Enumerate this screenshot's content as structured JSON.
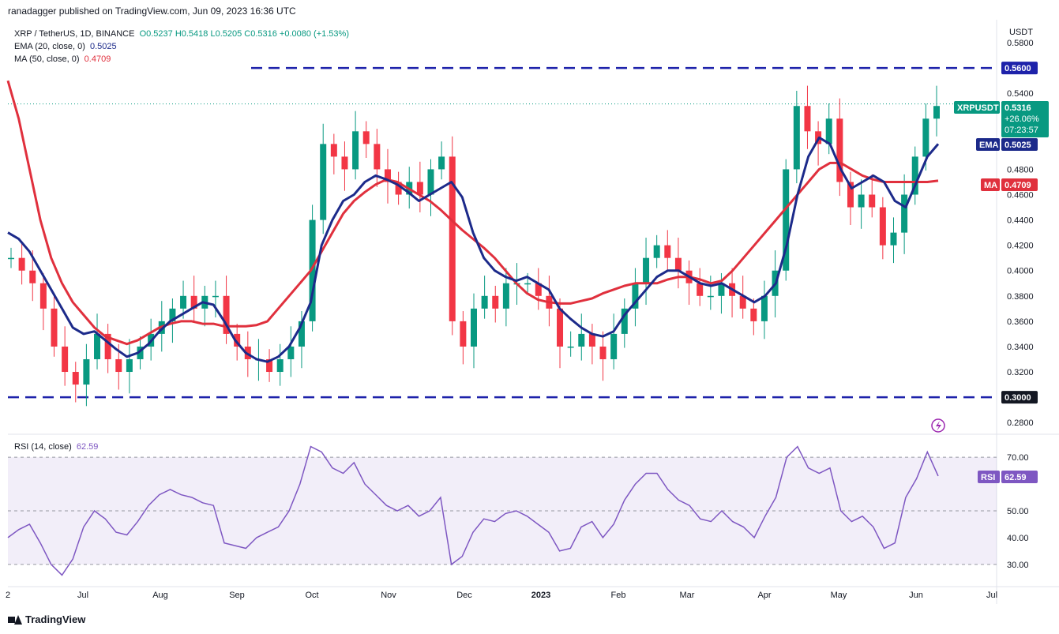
{
  "header": {
    "published": "ranadagger published on TradingView.com, Jun 09, 2023 16:36 UTC"
  },
  "legend": {
    "symbol": "XRP / TetherUS, 1D, BINANCE",
    "ohlc": "O0.5237 H0.5418 L0.5205 C0.5316 +0.0080 (+1.53%)",
    "ema_label": "EMA (20, close, 0)",
    "ema_value": "0.5025",
    "ma_label": "MA (50, close, 0)",
    "ma_value": "0.4709"
  },
  "rsi_legend": {
    "label": "RSI (14, close)",
    "value": "62.59"
  },
  "axis": {
    "currency": "USDT"
  },
  "badges": {
    "resistance": "0.5600",
    "support": "0.3000",
    "symbol": "XRPUSDT",
    "price": "0.5316",
    "change": "+26.06%",
    "countdown": "07:23:57",
    "ema_tag": "EMA",
    "ema_val": "0.5025",
    "ma_tag": "MA",
    "ma_val": "0.4709",
    "rsi_tag": "RSI",
    "rsi_val": "62.59"
  },
  "footer": {
    "brand": "TradingView"
  },
  "colors": {
    "up": "#089981",
    "down": "#f23645",
    "ema": "#1c2a8a",
    "ma": "#e0303d",
    "rsi": "#7e57c2",
    "level": "#1e22aa"
  },
  "chart_data": {
    "type": "candlestick",
    "price_axis": {
      "ticks": [
        0.58,
        0.56,
        0.54,
        0.52,
        0.5,
        0.48,
        0.46,
        0.44,
        0.42,
        0.4,
        0.38,
        0.36,
        0.34,
        0.32,
        0.3,
        0.28
      ],
      "tick_labels": [
        "0.5800",
        "0.5400",
        "0.4800",
        "0.4600",
        "0.4400",
        "0.4200",
        "0.4000",
        "0.3800",
        "0.3600",
        "0.3400",
        "0.3200",
        "0.2800"
      ],
      "range": [
        0.272,
        0.595
      ]
    },
    "time_axis": [
      "2",
      "Jul",
      "Aug",
      "Sep",
      "Oct",
      "Nov",
      "Dec",
      "2023",
      "Feb",
      "Mar",
      "Apr",
      "May",
      "Jun",
      "Jul"
    ],
    "levels": [
      0.56,
      0.3
    ],
    "last_price": 0.5316,
    "ema_series": [
      0.43,
      0.425,
      0.415,
      0.4,
      0.385,
      0.37,
      0.355,
      0.35,
      0.352,
      0.345,
      0.338,
      0.332,
      0.335,
      0.342,
      0.352,
      0.36,
      0.365,
      0.37,
      0.375,
      0.373,
      0.36,
      0.345,
      0.335,
      0.33,
      0.328,
      0.332,
      0.34,
      0.355,
      0.375,
      0.42,
      0.44,
      0.455,
      0.46,
      0.47,
      0.475,
      0.472,
      0.468,
      0.462,
      0.455,
      0.46,
      0.465,
      0.47,
      0.458,
      0.43,
      0.41,
      0.4,
      0.395,
      0.392,
      0.395,
      0.39,
      0.385,
      0.37,
      0.362,
      0.355,
      0.35,
      0.348,
      0.352,
      0.365,
      0.375,
      0.385,
      0.395,
      0.4,
      0.4,
      0.395,
      0.39,
      0.388,
      0.39,
      0.385,
      0.38,
      0.375,
      0.38,
      0.39,
      0.42,
      0.46,
      0.49,
      0.505,
      0.5,
      0.48,
      0.465,
      0.47,
      0.475,
      0.47,
      0.455,
      0.45,
      0.47,
      0.49,
      0.5
    ],
    "ma_series": [
      0.55,
      0.52,
      0.48,
      0.44,
      0.41,
      0.39,
      0.375,
      0.365,
      0.355,
      0.348,
      0.345,
      0.342,
      0.345,
      0.35,
      0.355,
      0.358,
      0.36,
      0.36,
      0.358,
      0.358,
      0.356,
      0.356,
      0.356,
      0.357,
      0.36,
      0.37,
      0.38,
      0.39,
      0.4,
      0.415,
      0.43,
      0.445,
      0.455,
      0.462,
      0.468,
      0.472,
      0.47,
      0.465,
      0.46,
      0.455,
      0.448,
      0.44,
      0.432,
      0.425,
      0.418,
      0.41,
      0.4,
      0.39,
      0.382,
      0.377,
      0.375,
      0.374,
      0.374,
      0.376,
      0.378,
      0.382,
      0.385,
      0.388,
      0.39,
      0.39,
      0.39,
      0.393,
      0.395,
      0.395,
      0.393,
      0.39,
      0.392,
      0.4,
      0.41,
      0.42,
      0.43,
      0.44,
      0.45,
      0.46,
      0.47,
      0.48,
      0.485,
      0.485,
      0.48,
      0.475,
      0.472,
      0.47,
      0.47,
      0.47,
      0.47,
      0.47,
      0.471
    ],
    "candles_close": [
      0.41,
      0.4,
      0.39,
      0.37,
      0.34,
      0.32,
      0.31,
      0.33,
      0.35,
      0.33,
      0.32,
      0.33,
      0.34,
      0.35,
      0.36,
      0.37,
      0.38,
      0.37,
      0.38,
      0.38,
      0.35,
      0.34,
      0.33,
      0.33,
      0.32,
      0.33,
      0.34,
      0.36,
      0.44,
      0.5,
      0.49,
      0.48,
      0.51,
      0.5,
      0.48,
      0.47,
      0.46,
      0.47,
      0.46,
      0.48,
      0.49,
      0.36,
      0.34,
      0.37,
      0.38,
      0.37,
      0.39,
      0.39,
      0.39,
      0.38,
      0.37,
      0.34,
      0.34,
      0.35,
      0.34,
      0.33,
      0.35,
      0.37,
      0.39,
      0.41,
      0.42,
      0.41,
      0.4,
      0.39,
      0.38,
      0.38,
      0.39,
      0.38,
      0.37,
      0.36,
      0.38,
      0.4,
      0.48,
      0.53,
      0.51,
      0.5,
      0.52,
      0.47,
      0.45,
      0.46,
      0.45,
      0.42,
      0.43,
      0.46,
      0.49,
      0.52,
      0.53
    ],
    "rsi_axis": {
      "ticks": [
        70.0,
        60.0,
        50.0,
        40.0,
        30.0
      ],
      "tick_labels": [
        "70.00",
        "50.00",
        "40.00",
        "30.00"
      ],
      "range": [
        22,
        78
      ],
      "bands": [
        30,
        70
      ]
    },
    "rsi_series": [
      40,
      43,
      45,
      38,
      30,
      26,
      32,
      44,
      50,
      47,
      42,
      41,
      46,
      52,
      56,
      58,
      56,
      55,
      53,
      52,
      38,
      37,
      36,
      40,
      42,
      44,
      50,
      60,
      74,
      72,
      66,
      64,
      68,
      60,
      56,
      52,
      50,
      52,
      48,
      50,
      55,
      30,
      33,
      42,
      47,
      46,
      49,
      50,
      48,
      45,
      42,
      35,
      36,
      44,
      46,
      40,
      45,
      54,
      60,
      64,
      64,
      58,
      54,
      52,
      47,
      46,
      50,
      46,
      44,
      40,
      48,
      55,
      70,
      74,
      66,
      64,
      66,
      50,
      46,
      48,
      44,
      36,
      38,
      55,
      62,
      72,
      63
    ]
  }
}
